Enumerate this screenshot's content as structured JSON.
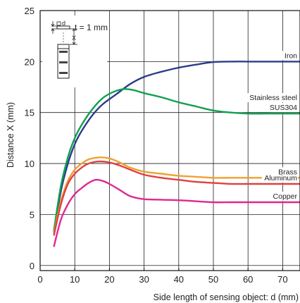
{
  "chart_data": {
    "type": "line",
    "xlabel": "Side length of sensing object: d (mm)",
    "ylabel": "Distance X (mm)",
    "xlim": [
      0,
      75
    ],
    "ylim": [
      -0.5,
      25
    ],
    "xticks": [
      0,
      10,
      20,
      30,
      40,
      50,
      60,
      70
    ],
    "yticks": [
      0,
      5,
      10,
      15,
      20,
      25
    ],
    "grid": true,
    "inset": {
      "thickness_label": "t = 1 mm",
      "d_label": "d",
      "x_label": "X"
    },
    "series": [
      {
        "name": "Iron",
        "color": "#2e3a8c",
        "x": [
          4,
          6,
          8,
          10,
          12,
          15,
          18,
          22,
          26,
          30,
          35,
          40,
          45,
          50,
          55,
          60,
          65,
          70,
          75
        ],
        "y": [
          3.3,
          7.3,
          10.0,
          11.9,
          13.2,
          14.7,
          15.8,
          16.8,
          17.8,
          18.5,
          19.0,
          19.4,
          19.7,
          19.95,
          20.0,
          20.0,
          20.0,
          20.0,
          20.0
        ],
        "label": [
          "Iron"
        ]
      },
      {
        "name": "Stainless steel SUS304",
        "color": "#10a050",
        "x": [
          4,
          6,
          8,
          10,
          12,
          15,
          18,
          21,
          24,
          27,
          30,
          35,
          40,
          45,
          50,
          55,
          60,
          65,
          70,
          75
        ],
        "y": [
          3.5,
          7.8,
          10.6,
          12.5,
          13.8,
          15.3,
          16.4,
          17.0,
          17.3,
          17.2,
          16.9,
          16.5,
          16.0,
          15.6,
          15.2,
          15.0,
          14.9,
          14.9,
          14.9,
          14.9
        ],
        "label": [
          "Stainless steel",
          "SUS304"
        ]
      },
      {
        "name": "Brass",
        "color": "#f0a030",
        "x": [
          4,
          6,
          8,
          10,
          12,
          14,
          17,
          20,
          23,
          26,
          30,
          35,
          40,
          45,
          50,
          55,
          60,
          65,
          70,
          75
        ],
        "y": [
          3.2,
          6.3,
          8.3,
          9.4,
          10.0,
          10.4,
          10.6,
          10.5,
          10.1,
          9.6,
          9.2,
          9.0,
          8.8,
          8.7,
          8.6,
          8.6,
          8.6,
          8.6,
          8.6,
          8.6
        ],
        "label": [
          "Brass"
        ]
      },
      {
        "name": "Aluminum",
        "color": "#e04040",
        "x": [
          4,
          6,
          8,
          10,
          12,
          14,
          17,
          20,
          23,
          26,
          30,
          35,
          40,
          45,
          50,
          55,
          60,
          65,
          70,
          75
        ],
        "y": [
          3.0,
          6.0,
          8.0,
          9.0,
          9.6,
          10.0,
          10.2,
          10.1,
          9.8,
          9.4,
          8.9,
          8.6,
          8.4,
          8.2,
          8.1,
          8.0,
          8.0,
          8.0,
          8.0,
          8.0
        ],
        "label": [
          "Aluminum"
        ]
      },
      {
        "name": "Copper",
        "color": "#e02890",
        "x": [
          4,
          6,
          8,
          10,
          12,
          14,
          16,
          18,
          20,
          23,
          26,
          30,
          35,
          40,
          45,
          50,
          55,
          60,
          65,
          70,
          75
        ],
        "y": [
          1.9,
          4.5,
          6.0,
          7.0,
          7.6,
          8.1,
          8.4,
          8.3,
          8.0,
          7.4,
          6.8,
          6.5,
          6.45,
          6.4,
          6.3,
          6.2,
          6.2,
          6.2,
          6.2,
          6.2,
          6.2
        ],
        "label": [
          "Copper"
        ]
      }
    ]
  }
}
